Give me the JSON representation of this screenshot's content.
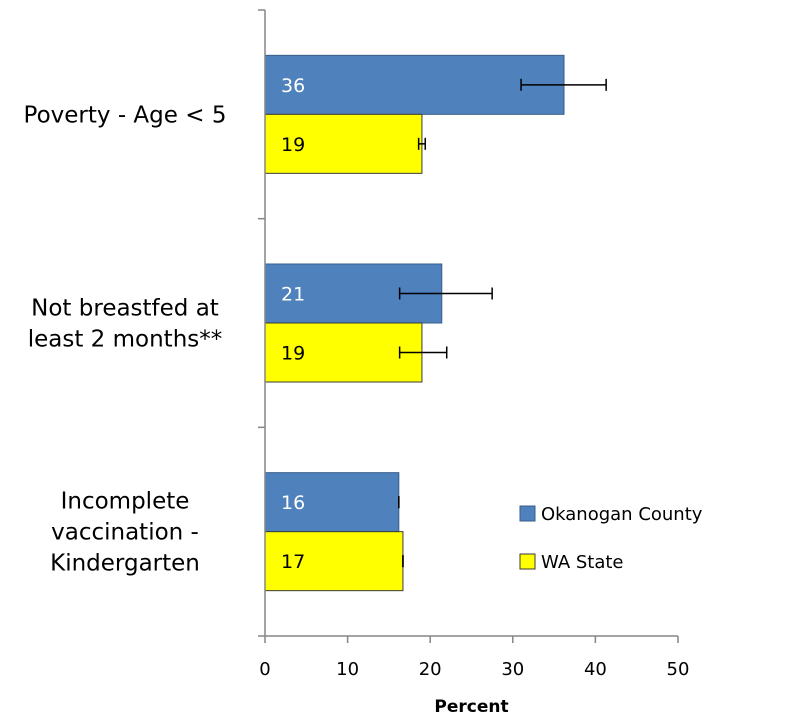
{
  "chart_data": {
    "type": "bar",
    "orientation": "horizontal",
    "categories": [
      [
        "Poverty - Age < 5"
      ],
      [
        "Not breastfed at",
        "least 2 months**"
      ],
      [
        "Incomplete",
        "vaccination -",
        "Kindergarten"
      ]
    ],
    "series": [
      {
        "name": "Okanogan County",
        "color": "#4F81BD",
        "label_color": "#FFFFFF",
        "values": [
          36,
          21,
          16
        ],
        "value_labels": [
          "36",
          "21",
          "16"
        ],
        "exact_values": [
          36.2,
          21.4,
          16.2
        ],
        "error_low": [
          31.0,
          16.3,
          16.2
        ],
        "error_high": [
          41.3,
          27.5,
          16.2
        ]
      },
      {
        "name": "WA State",
        "color": "#FFFF00",
        "label_color": "#000000",
        "values": [
          19,
          19,
          17
        ],
        "value_labels": [
          "19",
          "19",
          "17"
        ],
        "exact_values": [
          19.0,
          19.0,
          16.7
        ],
        "error_low": [
          18.6,
          16.3,
          16.7
        ],
        "error_high": [
          19.4,
          22.0,
          16.7
        ]
      }
    ],
    "xlabel": "Percent",
    "xlim": [
      0,
      50
    ],
    "xticks": [
      "0",
      "10",
      "20",
      "30",
      "40",
      "50"
    ],
    "grid": false,
    "legend_position": "lower-right inside"
  }
}
